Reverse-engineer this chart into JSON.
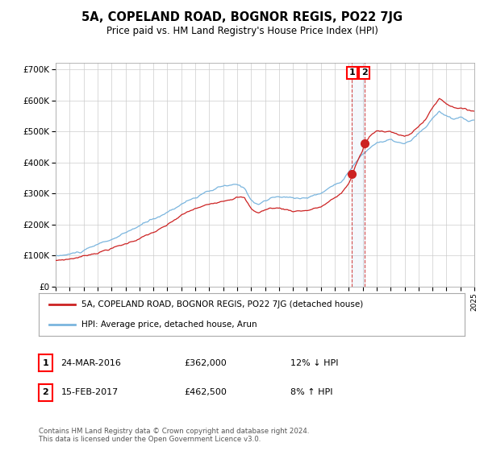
{
  "title": "5A, COPELAND ROAD, BOGNOR REGIS, PO22 7JG",
  "subtitle": "Price paid vs. HM Land Registry's House Price Index (HPI)",
  "ylim": [
    0,
    720000
  ],
  "yticks": [
    0,
    100000,
    200000,
    300000,
    400000,
    500000,
    600000,
    700000
  ],
  "ytick_labels": [
    "£0",
    "£100K",
    "£200K",
    "£300K",
    "£400K",
    "£500K",
    "£600K",
    "£700K"
  ],
  "hpi_color": "#7ab5de",
  "price_color": "#cc2222",
  "marker_color": "#cc2222",
  "legend_label_price": "5A, COPELAND ROAD, BOGNOR REGIS, PO22 7JG (detached house)",
  "legend_label_hpi": "HPI: Average price, detached house, Arun",
  "transaction1_date": "24-MAR-2016",
  "transaction1_price": "£362,000",
  "transaction1_hpi": "12% ↓ HPI",
  "transaction2_date": "15-FEB-2017",
  "transaction2_price": "£462,500",
  "transaction2_hpi": "8% ↑ HPI",
  "footer": "Contains HM Land Registry data © Crown copyright and database right 2024.\nThis data is licensed under the Open Government Licence v3.0.",
  "background_color": "#ffffff",
  "grid_color": "#cccccc",
  "transaction1_x": 2016.23,
  "transaction2_x": 2017.12
}
